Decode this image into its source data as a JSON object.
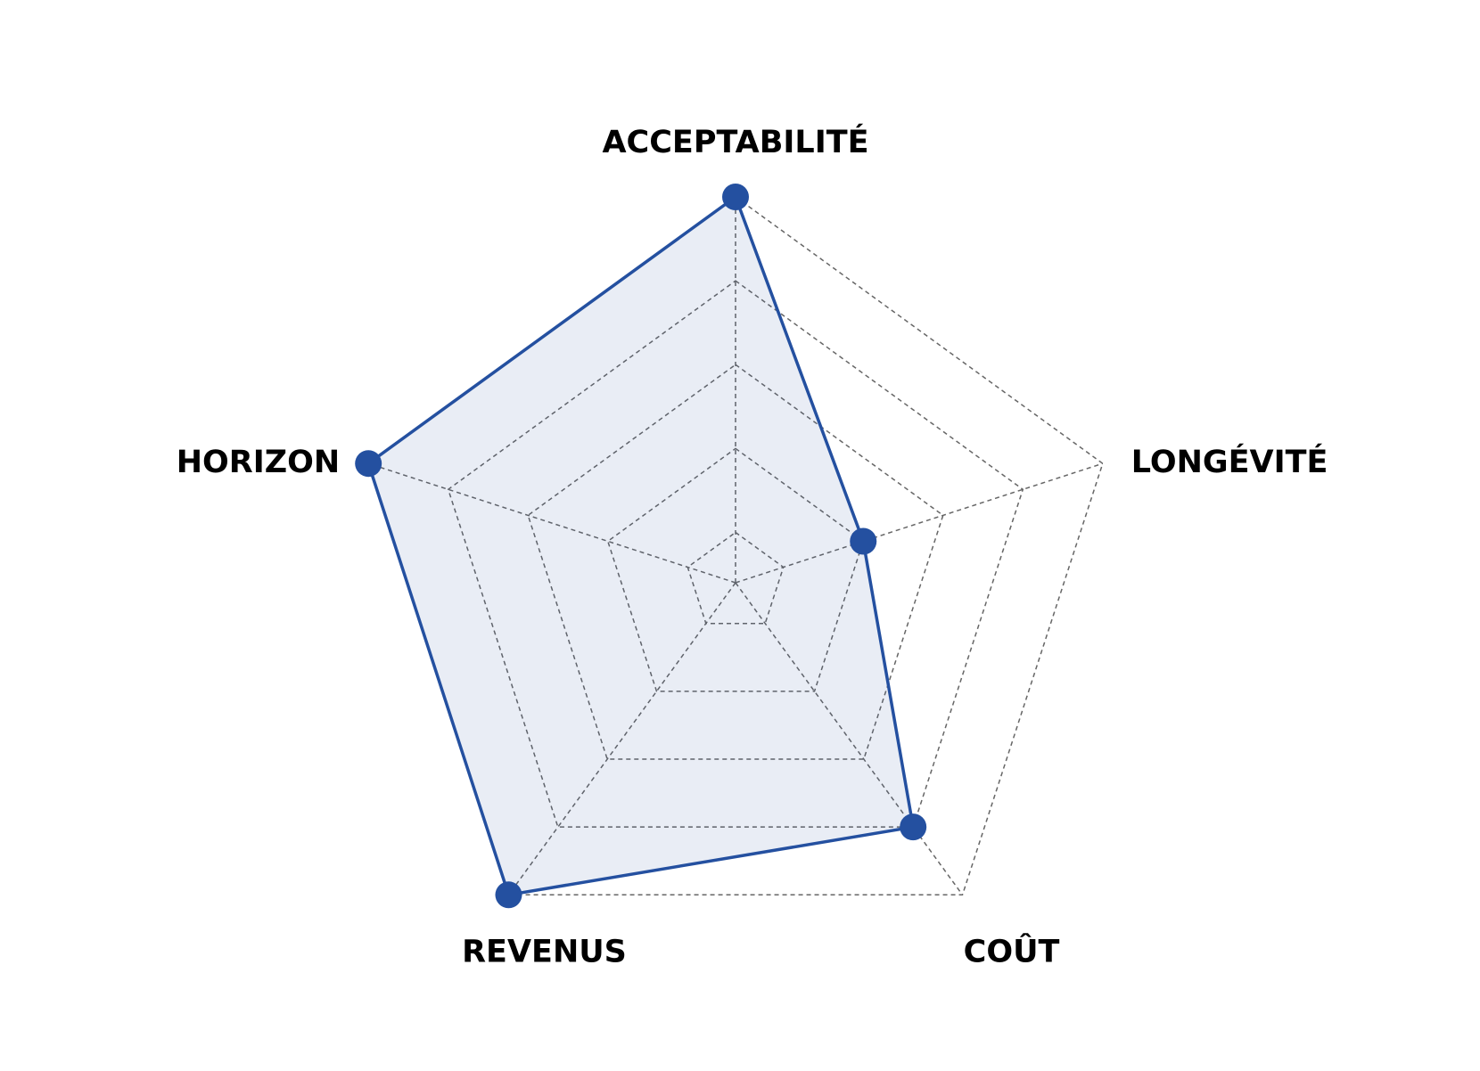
{
  "chart_data": {
    "type": "radar",
    "categories": [
      "ACCEPTABILITÉ",
      "LONGÉVITÉ",
      "COÛT",
      "REVENUS",
      "HORIZON"
    ],
    "series": [
      {
        "color": "#2450a0",
        "values": [
          5,
          2,
          4,
          5,
          5
        ]
      }
    ],
    "rlim": [
      0.4,
      5
    ],
    "rticks": [
      1,
      2,
      3,
      4,
      5
    ],
    "grid": true
  }
}
